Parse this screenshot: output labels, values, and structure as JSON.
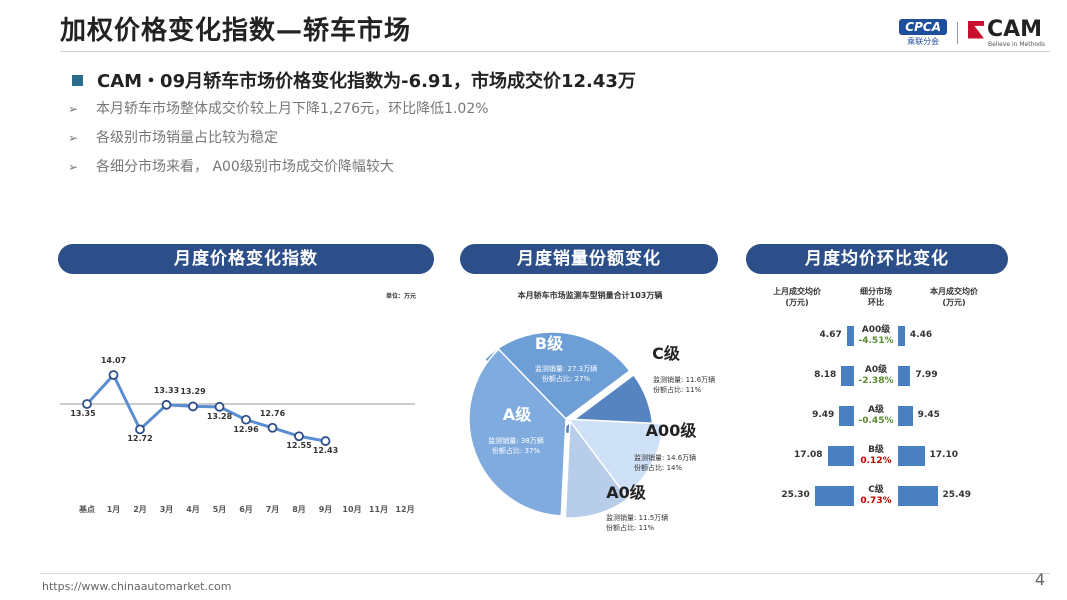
{
  "header": {
    "title": "加权价格变化指数—轿车市场",
    "logo_cpca": "CPCA",
    "logo_cpca_sub": "乘联分会",
    "logo_cam": "CAM",
    "logo_cam_sub": "Believe in Methods"
  },
  "summary": {
    "headline": "CAM・09月轿车市场价格变化指数为-6.91，市场成交价12.43万",
    "bullets": [
      "本月轿车市场整体成交价较上月下降1,276元，环比降低1.02%",
      "各级别市场销量占比较为稳定",
      "各细分市场来看， A00级别市场成交价降幅较大"
    ]
  },
  "panels": {
    "price_index": "月度价格变化指数",
    "share": "月度销量份额变化",
    "avg_price": "月度均价环比变化"
  },
  "chart_data": [
    {
      "type": "line",
      "unit": "单位：万元",
      "categories": [
        "基点",
        "1月",
        "2月",
        "3月",
        "4月",
        "5月",
        "6月",
        "7月",
        "8月",
        "9月",
        "10月",
        "11月",
        "12月"
      ],
      "values": [
        13.35,
        14.07,
        12.72,
        13.33,
        13.29,
        13.28,
        12.96,
        12.76,
        12.55,
        12.43,
        null,
        null,
        null
      ],
      "label_pos": [
        "below",
        "above",
        "below",
        "above",
        "above",
        "below",
        "below",
        "above",
        "below",
        "below"
      ],
      "baseline": 13.35,
      "color": "#2c4f8a"
    },
    {
      "type": "pie",
      "title": "本月轿车市场监测车型销量合计103万辆",
      "slices": [
        {
          "name": "B级",
          "volume": "监测销量: 27.3万辆",
          "share_text": "份额占比: 27%",
          "value": 27,
          "color": "#6e9ed6",
          "text_color": "#ffffff"
        },
        {
          "name": "C级",
          "volume": "监测销量: 11.6万辆",
          "share_text": "份额占比: 11%",
          "value": 11,
          "color": "#5584c0",
          "text_color": "#333333"
        },
        {
          "name": "A00级",
          "volume": "监测销量: 14.6万辆",
          "share_text": "份额占比: 14%",
          "value": 14,
          "color": "#cfe1f6",
          "text_color": "#333333"
        },
        {
          "name": "A0级",
          "volume": "监测销量: 11.5万辆",
          "share_text": "份额占比: 11%",
          "value": 11,
          "color": "#b7cdea",
          "text_color": "#333333"
        },
        {
          "name": "A级",
          "volume": "监测销量: 38万辆",
          "share_text": "份额占比: 37%",
          "value": 37,
          "color": "#80abdf",
          "text_color": "#ffffff"
        }
      ]
    },
    {
      "type": "table",
      "headers": [
        "上月成交均价\n(万元)",
        "细分市场\n环比",
        "本月成交均价\n(万元)"
      ],
      "rows": [
        {
          "segment": "A00级",
          "prev": 4.67,
          "prev_text": "4.67",
          "curr": 4.46,
          "curr_text": "4.46",
          "change": "-4.51%",
          "change_color": "#5a8a2e"
        },
        {
          "segment": "A0级",
          "prev": 8.18,
          "prev_text": "8.18",
          "curr": 7.99,
          "curr_text": "7.99",
          "change": "-2.38%",
          "change_color": "#5a8a2e"
        },
        {
          "segment": "A级",
          "prev": 9.49,
          "prev_text": "9.49",
          "curr": 9.45,
          "curr_text": "9.45",
          "change": "-0.45%",
          "change_color": "#5a8a2e"
        },
        {
          "segment": "B级",
          "prev": 17.08,
          "prev_text": "17.08",
          "curr": 17.1,
          "curr_text": "17.10",
          "change": "0.12%",
          "change_color": "#c00000"
        },
        {
          "segment": "C级",
          "prev": 25.3,
          "prev_text": "25.30",
          "curr": 25.49,
          "curr_text": "25.49",
          "change": "0.73%",
          "change_color": "#c00000"
        }
      ]
    }
  ],
  "footer": {
    "url": "https://www.chinaautomarket.com",
    "page": "4"
  }
}
